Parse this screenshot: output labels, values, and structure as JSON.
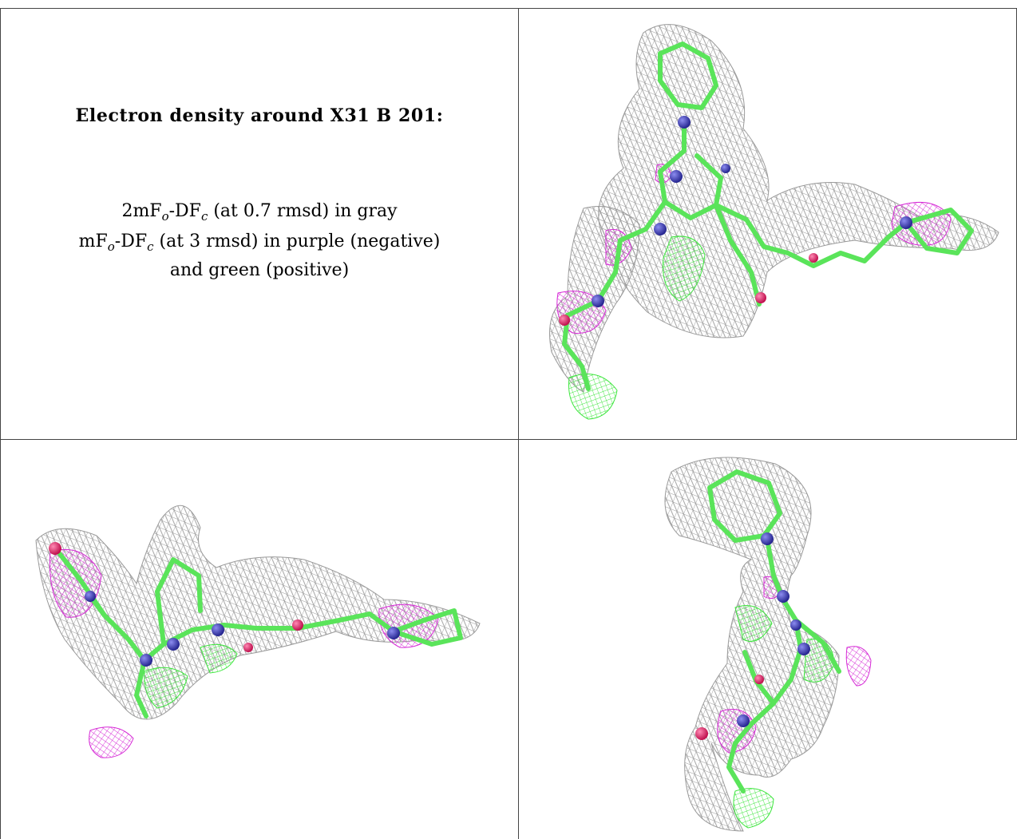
{
  "caption": {
    "title": "Electron density around X31 B 201:",
    "line1": {
      "prefix": "2mF",
      "sub1": "o",
      "mid": "-DF",
      "sub2": "c",
      "suffix": " (at 0.7 rmsd) in gray"
    },
    "line2": {
      "prefix": "mF",
      "sub1": "o",
      "mid": "-DF",
      "sub2": "c",
      "suffix": " (at 3 rmsd) in purple (negative)"
    },
    "line3": "and green (positive)"
  },
  "colors": {
    "mesh_gray": "#9a9a9a",
    "mesh_negative": "#d62ad6",
    "mesh_positive": "#3ee63e",
    "carbon": "#5ae45a",
    "nitrogen": "#3a3ab8",
    "oxygen": "#e8286e",
    "border": "#444444"
  },
  "panels": [
    {
      "name": "view-top-right"
    },
    {
      "name": "view-bottom-left"
    },
    {
      "name": "view-bottom-right"
    }
  ]
}
